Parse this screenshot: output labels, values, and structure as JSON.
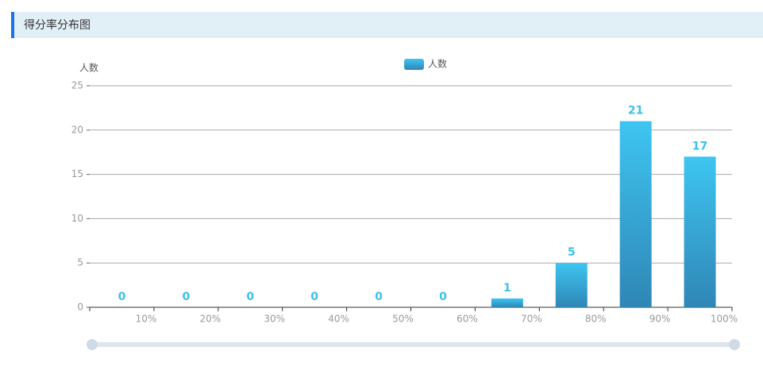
{
  "chart_data": {
    "type": "bar",
    "title": "得分率分布图",
    "ylabel": "人数",
    "categories": [
      "10%",
      "20%",
      "30%",
      "40%",
      "50%",
      "60%",
      "70%",
      "80%",
      "90%",
      "100%"
    ],
    "series": [
      {
        "name": "人数",
        "color": "#3ec5f1",
        "values": [
          0,
          0,
          0,
          0,
          0,
          0,
          1,
          5,
          21,
          17
        ]
      }
    ],
    "ylim": [
      0,
      25
    ],
    "yticks": [
      0,
      5,
      10,
      15,
      20,
      25
    ],
    "grid": true,
    "legend": "top"
  }
}
